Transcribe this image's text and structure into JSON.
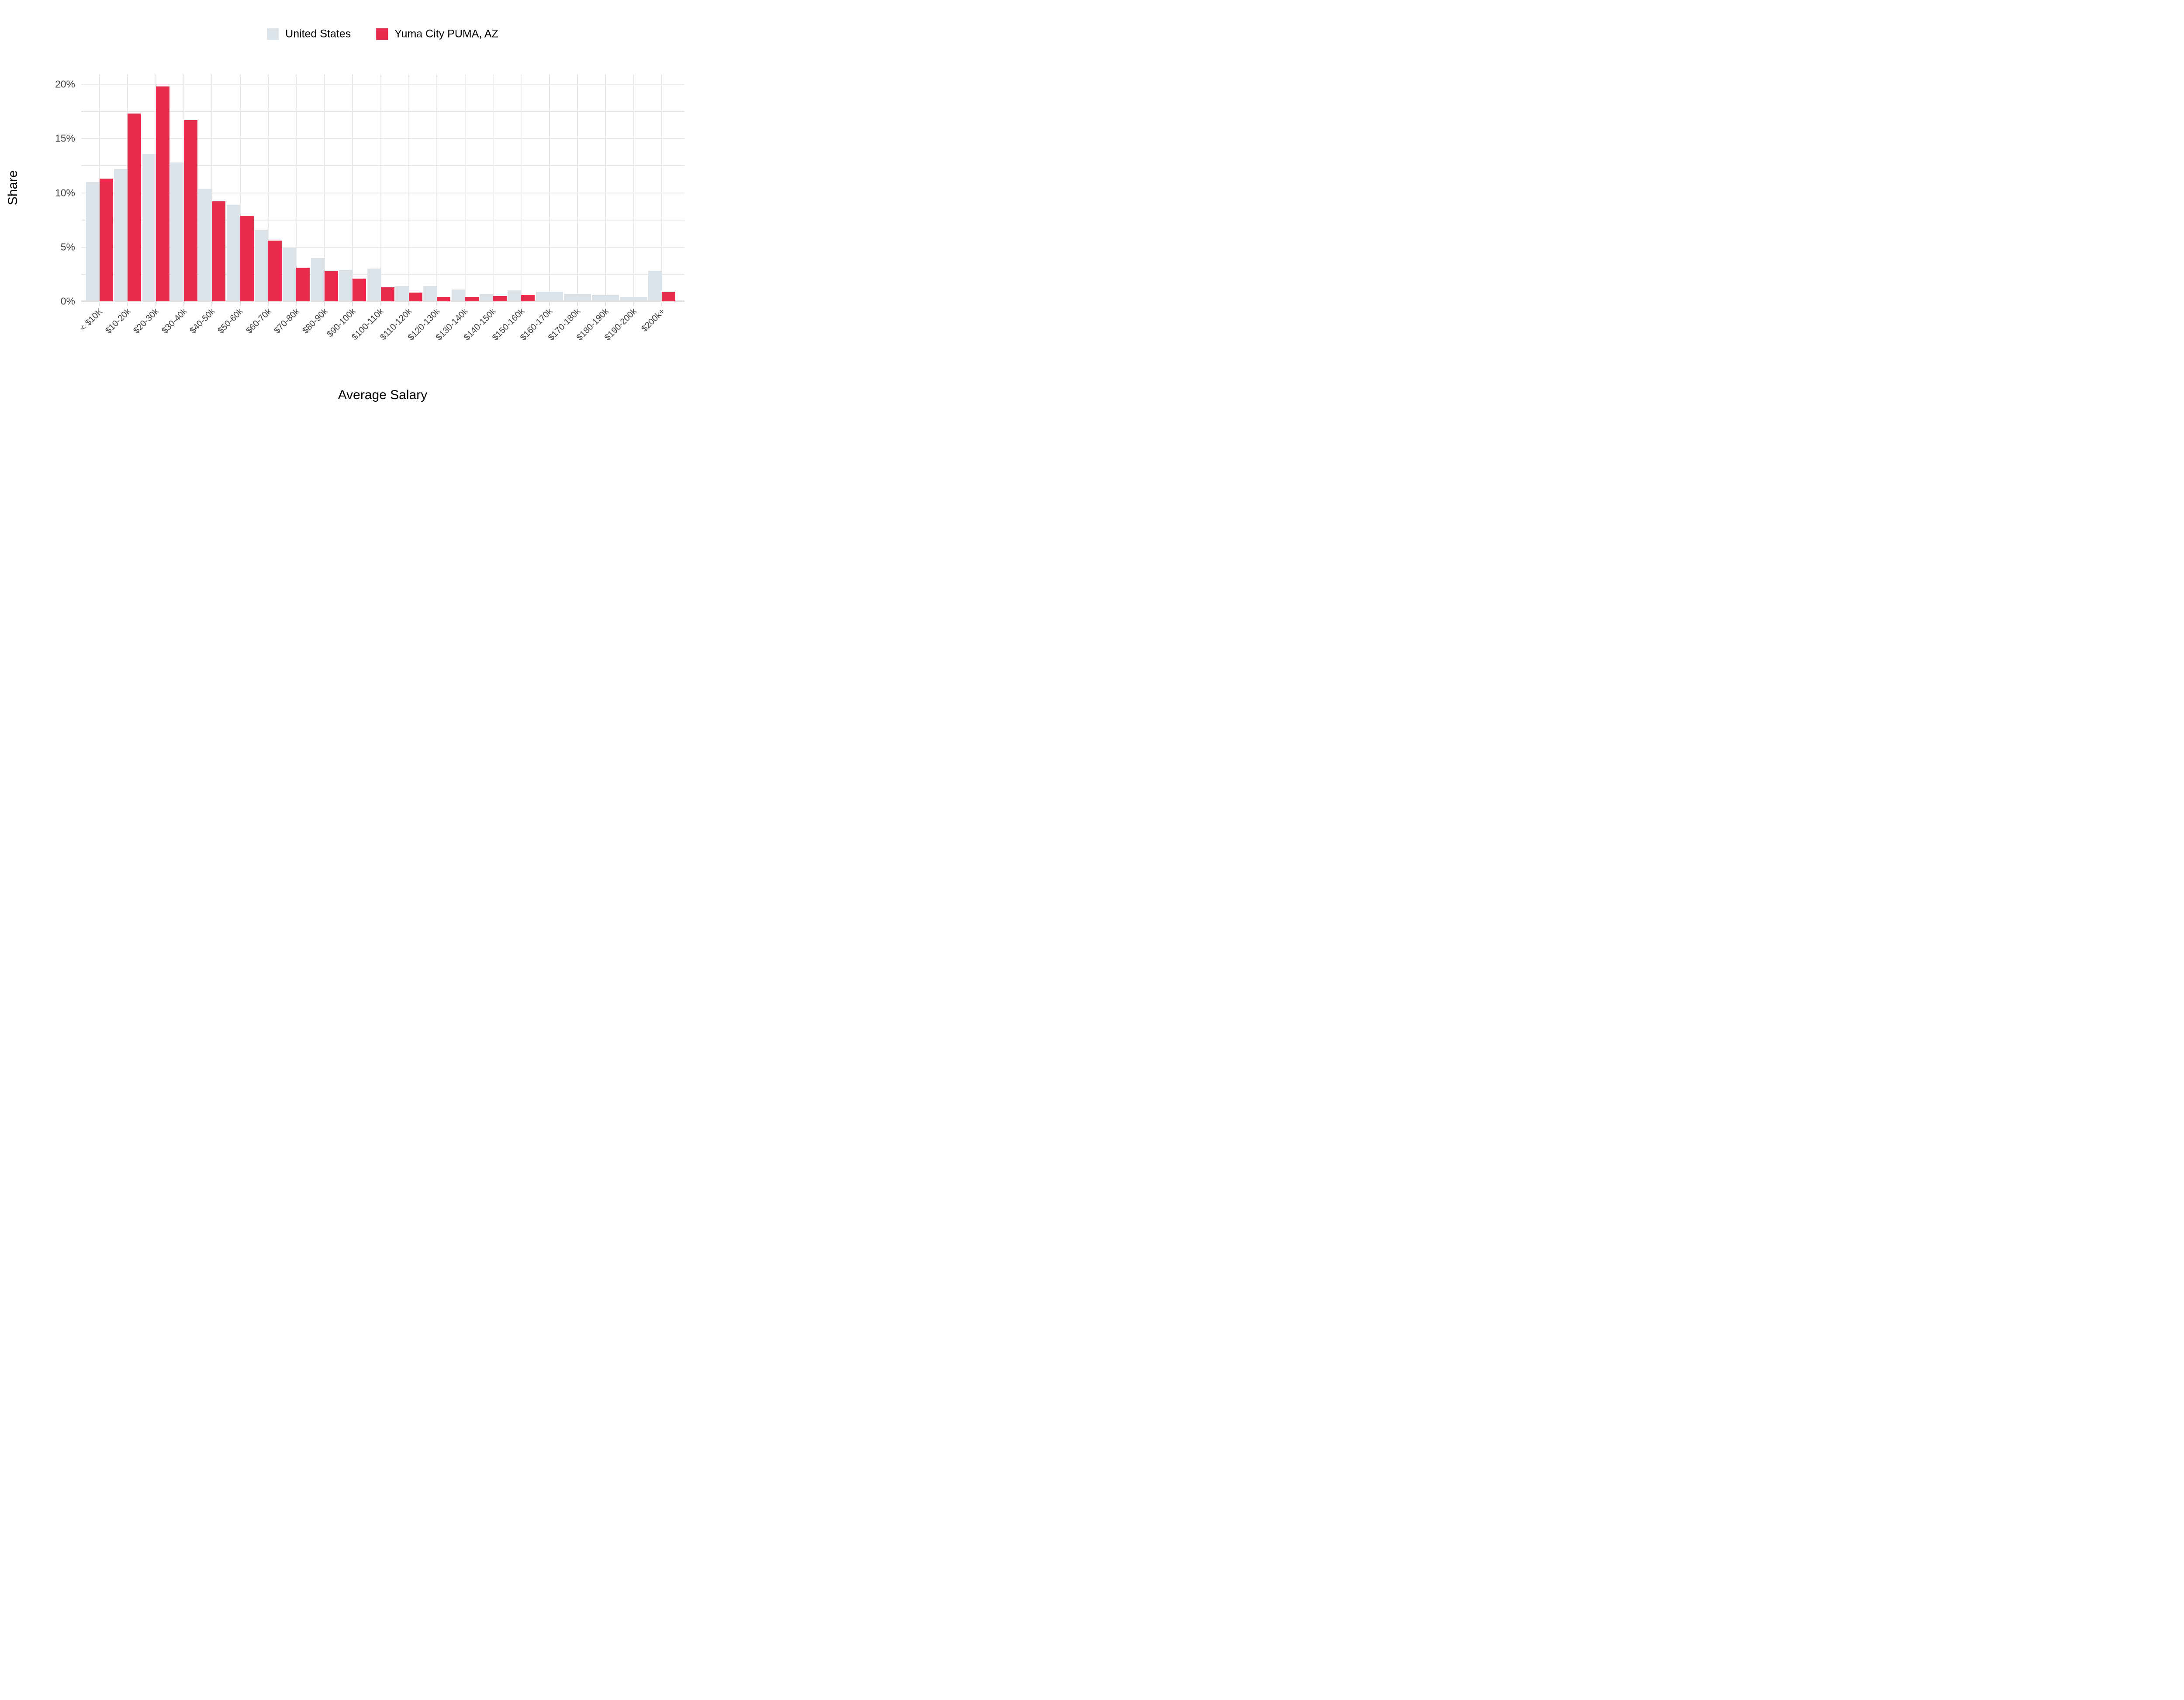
{
  "legend": {
    "items": [
      {
        "label": "United States",
        "color": "#dce3e8"
      },
      {
        "label": "Yuma City PUMA, AZ",
        "color": "#e82a4d"
      }
    ]
  },
  "y_axis": {
    "title": "Share",
    "tick_labels": [
      "0%",
      "5%",
      "10%",
      "15%",
      "20%"
    ],
    "tick_values": [
      0,
      5,
      10,
      15,
      20
    ],
    "max": 20,
    "minor_step": 2.5
  },
  "x_axis": {
    "title": "Average Salary"
  },
  "colors": {
    "us_bar": "#dce3e8",
    "yuma_bar": "#e82a4d",
    "gridline": "#e7e7e7",
    "axis_text": "#404040"
  },
  "chart_data": {
    "type": "bar",
    "title": "",
    "xlabel": "Average Salary",
    "ylabel": "Share",
    "ylim": [
      0,
      20
    ],
    "grid": true,
    "legend_position": "top",
    "categories": [
      "< $10K",
      "$10-20k",
      "$20-30k",
      "$30-40k",
      "$40-50k",
      "$50-60k",
      "$60-70k",
      "$70-80k",
      "$80-90k",
      "$90-100k",
      "$100-110k",
      "$110-120k",
      "$120-130k",
      "$130-140k",
      "$140-150k",
      "$150-160k",
      "$160-170k",
      "$170-180k",
      "$180-190k",
      "$190-200k",
      "$200k+"
    ],
    "series": [
      {
        "name": "United States",
        "color": "#dce3e8",
        "values": [
          11.0,
          12.2,
          13.6,
          12.8,
          10.4,
          8.9,
          6.6,
          4.9,
          4.0,
          2.9,
          3.0,
          1.4,
          1.4,
          1.1,
          0.7,
          1.0,
          0.9,
          0.7,
          0.6,
          0.4,
          2.8
        ]
      },
      {
        "name": "Yuma City PUMA, AZ",
        "color": "#e82a4d",
        "values": [
          11.3,
          17.3,
          19.8,
          16.7,
          9.2,
          7.9,
          5.6,
          3.1,
          2.8,
          2.1,
          1.3,
          0.8,
          0.4,
          0.4,
          0.5,
          0.6,
          null,
          null,
          null,
          null,
          0.9
        ]
      }
    ]
  }
}
